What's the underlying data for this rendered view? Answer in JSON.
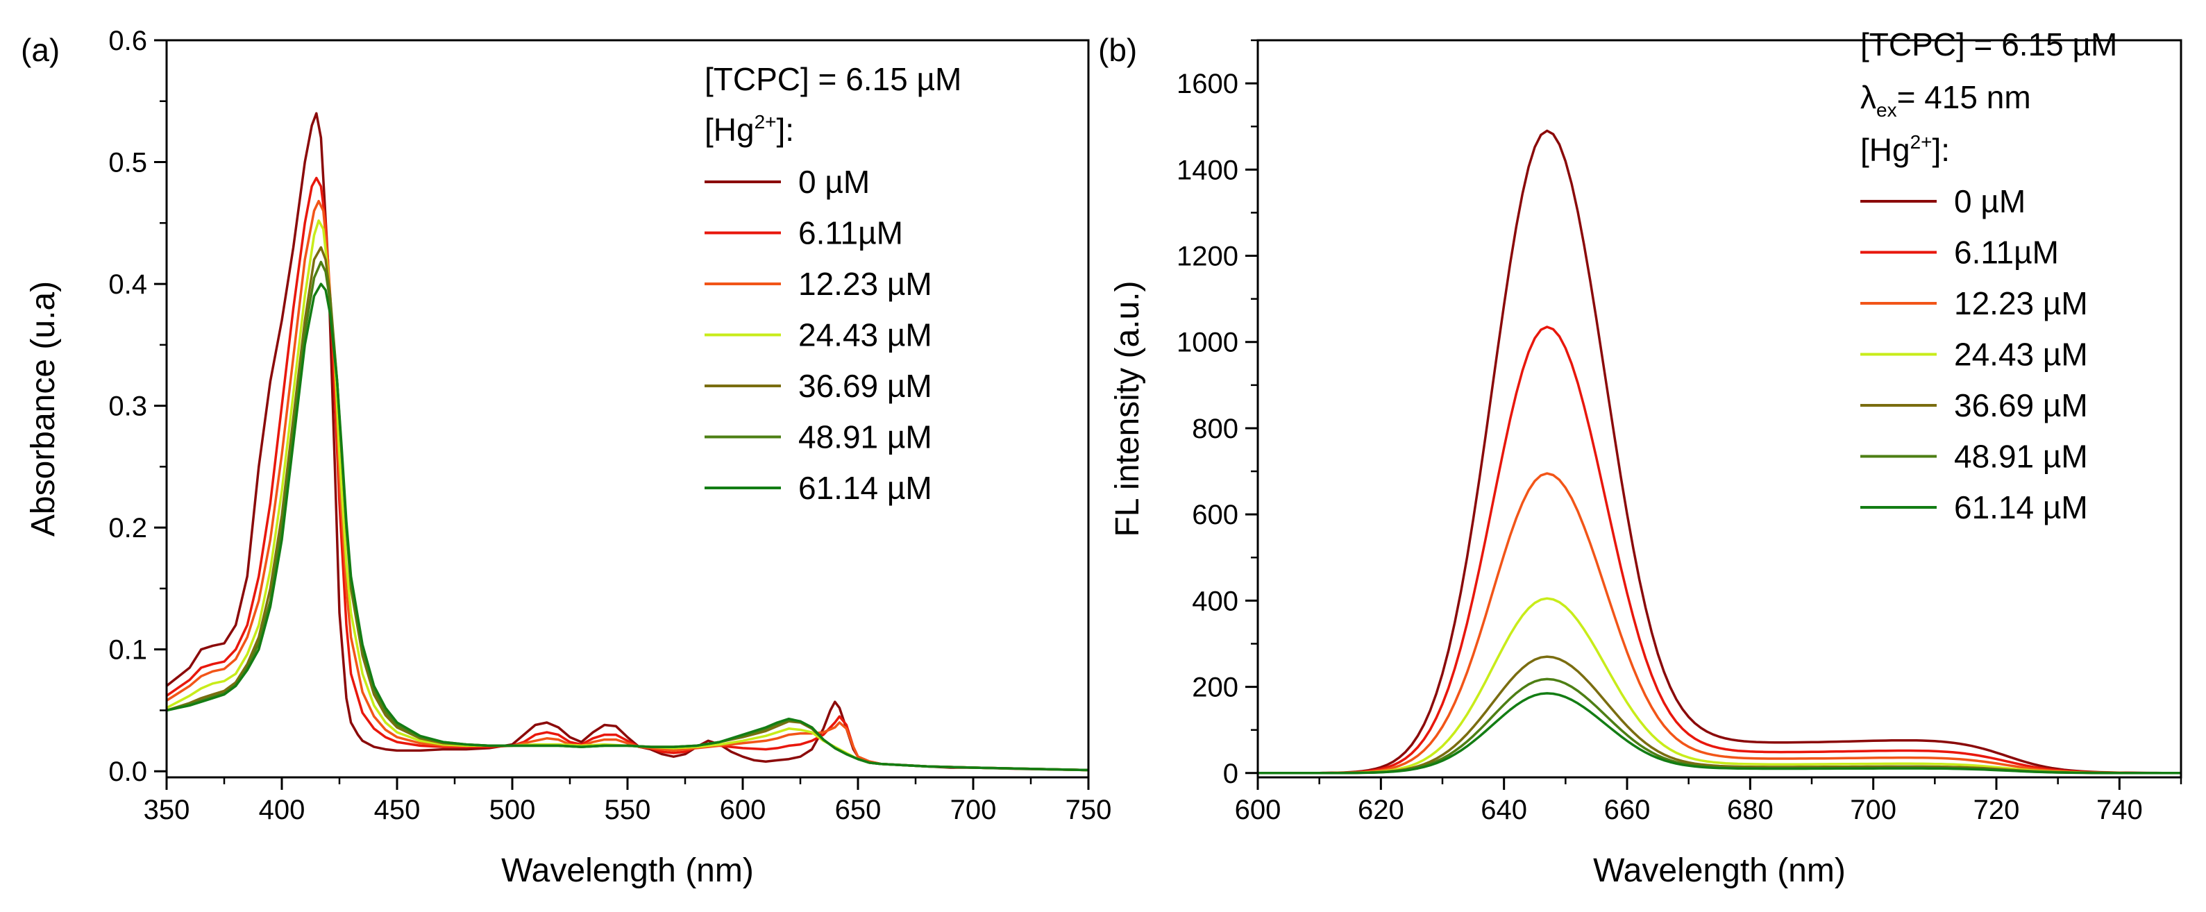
{
  "chart_data": [
    {
      "type": "line",
      "panel_label": "(a)",
      "xlabel": "Wavelength (nm)",
      "ylabel": "Absorbance (u.a)",
      "xlim": [
        350,
        750
      ],
      "ylim": [
        -0.005,
        0.6
      ],
      "xticks": [
        350,
        400,
        450,
        500,
        550,
        600,
        650,
        700,
        750
      ],
      "xtick_labels": [
        "350",
        "400",
        "450",
        "500",
        "550",
        "600",
        "650",
        "700",
        "750"
      ],
      "yticks": [
        0.0,
        0.1,
        0.2,
        0.3,
        0.4,
        0.5,
        0.6
      ],
      "ytick_labels": [
        "0.0",
        "0.1",
        "0.2",
        "0.3",
        "0.4",
        "0.5",
        "0.6"
      ],
      "legend": {
        "placement": "top-right",
        "header_line1": "[TCPC] = 6.15 µM",
        "header_hg_prefix": "[Hg",
        "header_hg_sup": "2+",
        "header_hg_suffix": "]:"
      },
      "series": [
        {
          "name": "0 µM",
          "color": "#8b0a0a",
          "x": [
            350,
            360,
            365,
            370,
            375,
            380,
            385,
            390,
            395,
            400,
            405,
            410,
            413,
            415,
            417,
            420,
            423,
            425,
            428,
            430,
            433,
            435,
            440,
            445,
            450,
            460,
            470,
            480,
            490,
            500,
            505,
            510,
            515,
            520,
            525,
            530,
            535,
            540,
            545,
            550,
            555,
            560,
            565,
            570,
            575,
            580,
            585,
            590,
            595,
            600,
            605,
            610,
            615,
            620,
            625,
            630,
            635,
            638,
            640,
            642,
            645,
            648,
            650,
            655,
            660,
            670,
            680,
            690,
            700,
            720,
            750
          ],
          "y": [
            0.07,
            0.085,
            0.1,
            0.103,
            0.105,
            0.12,
            0.16,
            0.25,
            0.32,
            0.37,
            0.43,
            0.5,
            0.53,
            0.54,
            0.52,
            0.42,
            0.25,
            0.13,
            0.06,
            0.04,
            0.03,
            0.025,
            0.02,
            0.018,
            0.017,
            0.017,
            0.018,
            0.018,
            0.019,
            0.022,
            0.03,
            0.038,
            0.04,
            0.036,
            0.028,
            0.024,
            0.032,
            0.038,
            0.037,
            0.028,
            0.02,
            0.018,
            0.014,
            0.012,
            0.014,
            0.02,
            0.025,
            0.022,
            0.016,
            0.012,
            0.009,
            0.008,
            0.009,
            0.01,
            0.012,
            0.018,
            0.035,
            0.05,
            0.057,
            0.052,
            0.035,
            0.018,
            0.012,
            0.008,
            0.006,
            0.005,
            0.004,
            0.003,
            0.003,
            0.002,
            0.001
          ]
        },
        {
          "name": "6.11µM",
          "color": "#e8170c",
          "x": [
            350,
            360,
            365,
            370,
            375,
            380,
            385,
            390,
            395,
            400,
            405,
            410,
            413,
            415,
            417,
            419,
            422,
            425,
            428,
            430,
            435,
            440,
            445,
            450,
            460,
            470,
            480,
            490,
            500,
            505,
            510,
            515,
            520,
            525,
            530,
            535,
            540,
            545,
            550,
            555,
            560,
            565,
            570,
            575,
            580,
            585,
            590,
            600,
            610,
            615,
            620,
            625,
            630,
            635,
            640,
            642,
            645,
            648,
            650,
            655,
            660,
            680,
            700,
            750
          ],
          "y": [
            0.062,
            0.075,
            0.085,
            0.088,
            0.09,
            0.1,
            0.12,
            0.16,
            0.22,
            0.3,
            0.38,
            0.45,
            0.48,
            0.487,
            0.48,
            0.45,
            0.35,
            0.22,
            0.12,
            0.08,
            0.048,
            0.035,
            0.028,
            0.024,
            0.021,
            0.02,
            0.02,
            0.02,
            0.021,
            0.024,
            0.03,
            0.032,
            0.03,
            0.024,
            0.022,
            0.027,
            0.03,
            0.03,
            0.025,
            0.02,
            0.019,
            0.016,
            0.015,
            0.016,
            0.02,
            0.022,
            0.021,
            0.019,
            0.018,
            0.019,
            0.021,
            0.022,
            0.025,
            0.03,
            0.04,
            0.045,
            0.038,
            0.02,
            0.012,
            0.008,
            0.006,
            0.004,
            0.003,
            0.001
          ]
        },
        {
          "name": "12.23 µM",
          "color": "#f25518",
          "x": [
            350,
            360,
            365,
            370,
            375,
            380,
            385,
            390,
            395,
            400,
            405,
            410,
            414,
            416,
            418,
            420,
            423,
            425,
            428,
            430,
            435,
            440,
            445,
            450,
            460,
            470,
            480,
            490,
            500,
            510,
            515,
            520,
            525,
            530,
            535,
            540,
            545,
            550,
            555,
            560,
            570,
            580,
            590,
            600,
            610,
            615,
            620,
            625,
            630,
            635,
            640,
            642,
            645,
            648,
            650,
            655,
            660,
            680,
            700,
            750
          ],
          "y": [
            0.058,
            0.07,
            0.078,
            0.082,
            0.084,
            0.092,
            0.11,
            0.14,
            0.19,
            0.26,
            0.34,
            0.42,
            0.46,
            0.468,
            0.46,
            0.42,
            0.33,
            0.24,
            0.15,
            0.11,
            0.065,
            0.045,
            0.034,
            0.028,
            0.023,
            0.021,
            0.021,
            0.021,
            0.021,
            0.025,
            0.027,
            0.026,
            0.022,
            0.021,
            0.024,
            0.026,
            0.026,
            0.023,
            0.02,
            0.019,
            0.017,
            0.019,
            0.021,
            0.023,
            0.025,
            0.027,
            0.03,
            0.031,
            0.031,
            0.032,
            0.036,
            0.04,
            0.035,
            0.02,
            0.012,
            0.008,
            0.006,
            0.004,
            0.003,
            0.001
          ]
        },
        {
          "name": "24.43 µM",
          "color": "#c8ec1a",
          "x": [
            350,
            360,
            365,
            370,
            375,
            380,
            385,
            390,
            395,
            400,
            405,
            410,
            414,
            416,
            418,
            420,
            423,
            425,
            428,
            430,
            435,
            440,
            445,
            450,
            460,
            470,
            480,
            490,
            500,
            510,
            520,
            530,
            540,
            550,
            560,
            570,
            580,
            590,
            600,
            610,
            615,
            620,
            625,
            630,
            635,
            640,
            645,
            650,
            655,
            660,
            680,
            700,
            750
          ],
          "y": [
            0.052,
            0.062,
            0.068,
            0.072,
            0.074,
            0.08,
            0.096,
            0.12,
            0.165,
            0.23,
            0.31,
            0.39,
            0.44,
            0.452,
            0.445,
            0.41,
            0.34,
            0.26,
            0.17,
            0.13,
            0.08,
            0.054,
            0.04,
            0.032,
            0.025,
            0.022,
            0.021,
            0.021,
            0.021,
            0.022,
            0.022,
            0.021,
            0.022,
            0.021,
            0.02,
            0.019,
            0.02,
            0.022,
            0.025,
            0.029,
            0.032,
            0.035,
            0.034,
            0.032,
            0.025,
            0.02,
            0.015,
            0.01,
            0.007,
            0.006,
            0.004,
            0.003,
            0.001
          ]
        },
        {
          "name": "36.69 µM",
          "color": "#7a6d10",
          "x": [
            350,
            360,
            365,
            370,
            375,
            380,
            385,
            390,
            395,
            400,
            405,
            410,
            414,
            417,
            419,
            421,
            424,
            426,
            428,
            430,
            435,
            440,
            445,
            450,
            460,
            470,
            480,
            490,
            500,
            510,
            520,
            530,
            540,
            550,
            560,
            570,
            580,
            590,
            600,
            610,
            615,
            620,
            625,
            630,
            635,
            640,
            645,
            650,
            655,
            660,
            680,
            700,
            750
          ],
          "y": [
            0.05,
            0.056,
            0.06,
            0.063,
            0.066,
            0.073,
            0.088,
            0.11,
            0.15,
            0.21,
            0.29,
            0.37,
            0.42,
            0.43,
            0.42,
            0.39,
            0.32,
            0.26,
            0.2,
            0.15,
            0.095,
            0.063,
            0.046,
            0.036,
            0.027,
            0.023,
            0.022,
            0.021,
            0.021,
            0.021,
            0.021,
            0.02,
            0.021,
            0.021,
            0.02,
            0.02,
            0.021,
            0.024,
            0.028,
            0.033,
            0.037,
            0.041,
            0.04,
            0.035,
            0.026,
            0.019,
            0.014,
            0.01,
            0.007,
            0.006,
            0.004,
            0.003,
            0.001
          ]
        },
        {
          "name": "48.91 µM",
          "color": "#4d7f14",
          "x": [
            350,
            360,
            365,
            370,
            375,
            380,
            385,
            390,
            395,
            400,
            405,
            410,
            414,
            417,
            419,
            421,
            424,
            426,
            428,
            430,
            435,
            440,
            445,
            450,
            460,
            470,
            480,
            490,
            500,
            510,
            520,
            530,
            540,
            550,
            560,
            570,
            580,
            590,
            600,
            610,
            615,
            620,
            625,
            630,
            635,
            640,
            645,
            650,
            655,
            660,
            680,
            700,
            750
          ],
          "y": [
            0.05,
            0.055,
            0.058,
            0.061,
            0.064,
            0.071,
            0.085,
            0.105,
            0.14,
            0.2,
            0.28,
            0.36,
            0.405,
            0.418,
            0.41,
            0.385,
            0.32,
            0.26,
            0.2,
            0.155,
            0.1,
            0.067,
            0.049,
            0.038,
            0.028,
            0.024,
            0.022,
            0.021,
            0.021,
            0.021,
            0.021,
            0.02,
            0.021,
            0.021,
            0.02,
            0.02,
            0.021,
            0.024,
            0.029,
            0.035,
            0.039,
            0.042,
            0.041,
            0.036,
            0.026,
            0.019,
            0.014,
            0.01,
            0.007,
            0.006,
            0.004,
            0.003,
            0.001
          ]
        },
        {
          "name": "61.14 µM",
          "color": "#137d14",
          "x": [
            350,
            360,
            365,
            370,
            375,
            380,
            385,
            390,
            395,
            400,
            405,
            410,
            414,
            417,
            419,
            421,
            424,
            426,
            428,
            430,
            435,
            440,
            445,
            450,
            460,
            470,
            480,
            490,
            500,
            510,
            520,
            530,
            540,
            550,
            560,
            570,
            580,
            590,
            600,
            610,
            615,
            620,
            625,
            630,
            635,
            640,
            645,
            650,
            655,
            660,
            680,
            700,
            750
          ],
          "y": [
            0.05,
            0.054,
            0.057,
            0.06,
            0.063,
            0.07,
            0.083,
            0.1,
            0.135,
            0.19,
            0.27,
            0.35,
            0.39,
            0.4,
            0.395,
            0.375,
            0.32,
            0.265,
            0.205,
            0.16,
            0.104,
            0.07,
            0.052,
            0.04,
            0.029,
            0.024,
            0.022,
            0.021,
            0.021,
            0.021,
            0.021,
            0.02,
            0.021,
            0.021,
            0.02,
            0.02,
            0.021,
            0.024,
            0.03,
            0.036,
            0.04,
            0.043,
            0.041,
            0.036,
            0.026,
            0.019,
            0.014,
            0.01,
            0.007,
            0.006,
            0.004,
            0.003,
            0.001
          ]
        }
      ]
    },
    {
      "type": "line",
      "panel_label": "(b)",
      "xlabel": "Wavelength (nm)",
      "ylabel": "FL intensity (a.u.)",
      "xlim": [
        600,
        750
      ],
      "ylim": [
        -10,
        1700
      ],
      "xticks": [
        600,
        620,
        640,
        660,
        680,
        700,
        720,
        740
      ],
      "xtick_labels": [
        "600",
        "620",
        "640",
        "660",
        "680",
        "700",
        "720",
        "740"
      ],
      "yticks": [
        0,
        200,
        400,
        600,
        800,
        1000,
        1200,
        1400,
        1600
      ],
      "ytick_labels": [
        "0",
        "200",
        "400",
        "600",
        "800",
        "1000",
        "1200",
        "1400",
        "1600"
      ],
      "legend": {
        "placement": "top-right",
        "header_line1": "[TCPC] = 6.15 µM",
        "header_lambda": "λ",
        "header_lambda_sub": "ex",
        "header_lambda_value": "= 415 nm",
        "header_hg_prefix": "[Hg",
        "header_hg_sup": "2+",
        "header_hg_suffix": "]:"
      },
      "series": [
        {
          "name": "0 µM",
          "color": "#8b0a0a",
          "peak": 1490,
          "tail": 70
        },
        {
          "name": "6.11µM",
          "color": "#e8170c",
          "peak": 1035,
          "tail": 48
        },
        {
          "name": "12.23 µM",
          "color": "#f25518",
          "peak": 695,
          "tail": 33
        },
        {
          "name": "24.43 µM",
          "color": "#c8ec1a",
          "peak": 405,
          "tail": 20
        },
        {
          "name": "36.69 µM",
          "color": "#7a6d10",
          "peak": 270,
          "tail": 14
        },
        {
          "name": "48.91 µM",
          "color": "#4d7f14",
          "peak": 218,
          "tail": 11
        },
        {
          "name": "61.14 µM",
          "color": "#137d14",
          "peak": 185,
          "tail": 10
        }
      ]
    }
  ]
}
